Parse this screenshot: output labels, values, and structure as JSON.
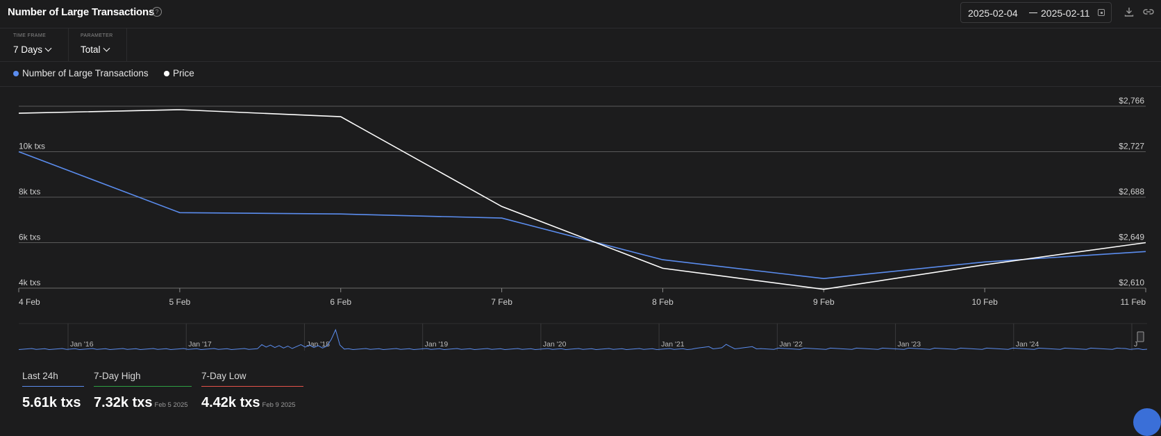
{
  "header": {
    "title": "Number of Large Transactions",
    "date_start": "2025-02-04",
    "date_end": "2025-02-11"
  },
  "controls": {
    "timeframe_caption": "TIME FRAME",
    "timeframe_value": "7 Days",
    "parameter_caption": "PARAMETER",
    "parameter_value": "Total"
  },
  "legend": [
    {
      "label": "Number of Large Transactions",
      "color": "#5b8def"
    },
    {
      "label": "Price",
      "color": "#ffffff"
    }
  ],
  "chart_data": {
    "type": "line",
    "x": [
      "4 Feb",
      "5 Feb",
      "6 Feb",
      "7 Feb",
      "8 Feb",
      "9 Feb",
      "10 Feb",
      "11 Feb"
    ],
    "series": [
      {
        "name": "Number of Large Transactions",
        "axis": "left",
        "color": "#5b8def",
        "values": [
          10.0,
          7.32,
          7.26,
          7.08,
          5.25,
          4.42,
          5.15,
          5.61
        ]
      },
      {
        "name": "Price",
        "axis": "right",
        "color": "#ffffff",
        "values": [
          2760,
          2763,
          2757,
          2680,
          2627,
          2609,
          2630,
          2649
        ]
      }
    ],
    "y_left": {
      "ticks": [
        4,
        6,
        8,
        10
      ],
      "tick_labels": [
        "4k txs",
        "6k txs",
        "8k txs",
        "10k txs"
      ],
      "range": [
        4,
        12
      ]
    },
    "y_right": {
      "ticks": [
        2610,
        2649,
        2688,
        2727,
        2766
      ],
      "tick_labels": [
        "$2,610",
        "$2,649",
        "$2,688",
        "$2,727",
        "$2,766"
      ],
      "range": [
        2610,
        2766
      ]
    },
    "grid": true,
    "navigator": {
      "labels": [
        "Jan '16",
        "Jan '17",
        "Jan '18",
        "Jan '19",
        "Jan '20",
        "Jan '21",
        "Jan '22",
        "Jan '23",
        "Jan '24",
        "J"
      ]
    }
  },
  "stats": [
    {
      "label": "Last 24h",
      "value": "5.61k txs",
      "date": "",
      "color": "#5b8def"
    },
    {
      "label": "7-Day High",
      "value": "7.32k txs",
      "date": "Feb 5 2025",
      "color": "#2ea043"
    },
    {
      "label": "7-Day Low",
      "value": "4.42k txs",
      "date": "Feb 9 2025",
      "color": "#e5534b"
    }
  ]
}
